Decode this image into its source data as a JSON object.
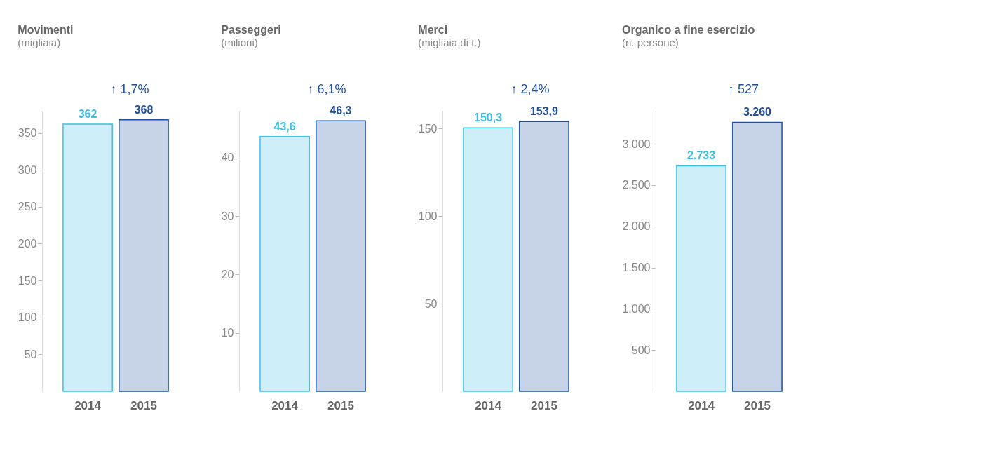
{
  "chart_data": [
    {
      "type": "bar",
      "title": "Movimenti",
      "subtitle": "(migliaia)",
      "categories": [
        "2014",
        "2015"
      ],
      "values": [
        362,
        368
      ],
      "colors": [
        "#3cbfe8",
        "#1f4f9e"
      ],
      "value_labels": [
        "362",
        "368"
      ],
      "ylim": [
        0,
        380
      ],
      "yticks": [
        50,
        100,
        150,
        200,
        250,
        300,
        350
      ],
      "annotations": [
        "↑ 1,7%"
      ]
    },
    {
      "type": "bar",
      "title": "Passeggeri",
      "subtitle": "(milioni)",
      "categories": [
        "2014",
        "2015"
      ],
      "values": [
        43.6,
        46.3
      ],
      "colors": [
        "#3cbfe8",
        "#1f4f9e"
      ],
      "value_labels": [
        "43,6",
        "46,3"
      ],
      "ylim": [
        0,
        48
      ],
      "yticks": [
        10,
        20,
        30,
        40
      ],
      "annotations": [
        "↑ 6,1%"
      ]
    },
    {
      "type": "bar",
      "title": "Merci",
      "subtitle": "(migliaia di t.)",
      "categories": [
        "2014",
        "2015"
      ],
      "values": [
        150.3,
        153.9
      ],
      "colors": [
        "#3cbfe8",
        "#1f4f9e"
      ],
      "value_labels": [
        "150,3",
        "153,9"
      ],
      "ylim": [
        0,
        160
      ],
      "yticks": [
        50,
        100,
        150
      ],
      "annotations": [
        "↑ 2,4%"
      ]
    },
    {
      "type": "bar",
      "title": "Organico a fine esercizio",
      "subtitle": "(n. persone)",
      "categories": [
        "2014",
        "2015"
      ],
      "values": [
        2733,
        3260
      ],
      "colors": [
        "#3cbfe8",
        "#1f4f9e"
      ],
      "value_labels": [
        "2.733",
        "3.260"
      ],
      "ylim": [
        0,
        3400
      ],
      "yticks": [
        {
          "value": 500,
          "label": "500"
        },
        {
          "value": 1000,
          "label": "1.000"
        },
        {
          "value": 1500,
          "label": "1.500"
        },
        {
          "value": 2000,
          "label": "2.000"
        },
        {
          "value": 2500,
          "label": "2.500"
        },
        {
          "value": 3000,
          "label": "3.000"
        }
      ],
      "annotations": [
        "↑ 527"
      ]
    }
  ]
}
